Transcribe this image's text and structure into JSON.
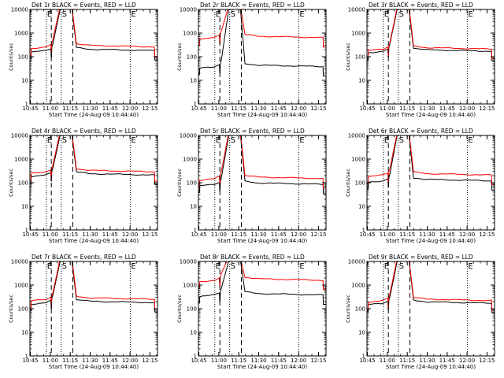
{
  "chart_data": {
    "type": "line",
    "xlabel": "Start Time (24-Aug-09 10:44:40)",
    "ylabel": "Counts/sec",
    "x_ticks": [
      "10:45",
      "11:00",
      "11:15",
      "11:30",
      "11:45",
      "12:00",
      "12:15"
    ],
    "x_tick_minutes": [
      0.33,
      15.33,
      30.33,
      45.33,
      60.33,
      75.33,
      90.33
    ],
    "xlim_minutes": [
      0,
      96
    ],
    "y_scale": "log",
    "ylim": [
      1,
      10000
    ],
    "y_ticks": [
      "1",
      "10",
      "100",
      "1000",
      "10000"
    ],
    "legend": "none",
    "grid": false,
    "colors": {
      "events": "#000000",
      "lld": "#ff0000"
    },
    "series_names": [
      "BLACK = Events",
      "RED = LLD"
    ],
    "vertical_lines": [
      {
        "x_minutes": 12.3,
        "style": "dotted"
      },
      {
        "x_minutes": 16.1,
        "style": "dashed"
      },
      {
        "x_minutes": 23.5,
        "style": "dotted"
      },
      {
        "x_minutes": 32.3,
        "style": "dashed"
      },
      {
        "x_minutes": 75.5,
        "style": "dotted"
      }
    ],
    "markers": [
      {
        "label": "E",
        "x_minutes": 12.3
      },
      {
        "label": "S",
        "x_minutes": 23.5
      },
      {
        "label": "E",
        "x_minutes": 75.5
      }
    ],
    "panels": [
      {
        "title": "Det 1r  BLACK = Events, RED = LLD",
        "events_base": 180,
        "lld_base": 260,
        "peak": 12000
      },
      {
        "title": "Det 2r  BLACK = Events, RED = LLD",
        "events_base": 38,
        "lld_base": 640,
        "peak": 12000
      },
      {
        "title": "Det 3r  BLACK = Events, RED = LLD",
        "events_base": 170,
        "lld_base": 210,
        "peak": 12000
      },
      {
        "title": "Det 4r  BLACK = Events, RED = LLD",
        "events_base": 210,
        "lld_base": 290,
        "peak": 12000
      },
      {
        "title": "Det 5r  BLACK = Events, RED = LLD",
        "events_base": 85,
        "lld_base": 150,
        "peak": 12000
      },
      {
        "title": "Det 6r  BLACK = Events, RED = LLD",
        "events_base": 120,
        "lld_base": 210,
        "peak": 12000
      },
      {
        "title": "Det 7r  BLACK = Events, RED = LLD",
        "events_base": 180,
        "lld_base": 250,
        "peak": 12000
      },
      {
        "title": "Det 8r  BLACK = Events, RED = LLD",
        "events_base": 380,
        "lld_base": 1600,
        "peak": 12000
      },
      {
        "title": "Det 9r  BLACK = Events, RED = LLD",
        "events_base": 170,
        "lld_base": 220,
        "peak": 12000
      }
    ]
  }
}
